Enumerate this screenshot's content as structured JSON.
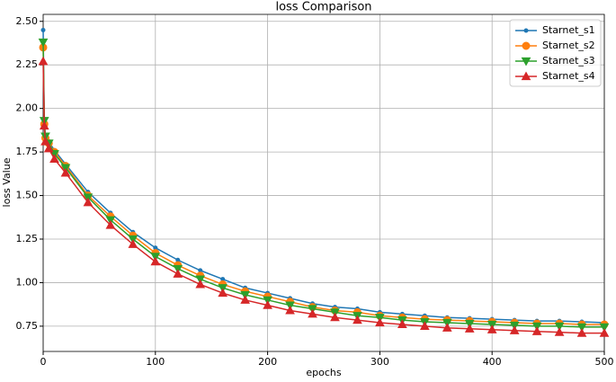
{
  "chart_data": {
    "type": "line",
    "title": "loss Comparison",
    "x_label": "epochs",
    "y_label": "loss Value",
    "x": [
      0,
      1,
      2,
      5,
      10,
      20,
      40,
      60,
      80,
      100,
      120,
      140,
      160,
      180,
      200,
      220,
      240,
      260,
      280,
      300,
      320,
      340,
      360,
      380,
      400,
      420,
      440,
      460,
      480,
      500
    ],
    "series": [
      {
        "name": "Starnet_s1",
        "color": "#1f77b4",
        "marker": "dot",
        "values": [
          2.45,
          1.92,
          1.84,
          1.81,
          1.76,
          1.68,
          1.52,
          1.4,
          1.29,
          1.2,
          1.13,
          1.07,
          1.02,
          0.97,
          0.94,
          0.91,
          0.88,
          0.86,
          0.85,
          0.83,
          0.82,
          0.81,
          0.8,
          0.795,
          0.79,
          0.785,
          0.78,
          0.78,
          0.775,
          0.77
        ]
      },
      {
        "name": "Starnet_s2",
        "color": "#ff7f0e",
        "marker": "circle",
        "values": [
          2.35,
          1.91,
          1.83,
          1.8,
          1.75,
          1.67,
          1.5,
          1.38,
          1.27,
          1.17,
          1.1,
          1.04,
          0.99,
          0.95,
          0.92,
          0.89,
          0.86,
          0.84,
          0.83,
          0.81,
          0.8,
          0.79,
          0.785,
          0.78,
          0.775,
          0.77,
          0.765,
          0.765,
          0.76,
          0.76
        ]
      },
      {
        "name": "Starnet_s3",
        "color": "#2ca02c",
        "marker": "triangle-down",
        "values": [
          2.38,
          1.93,
          1.84,
          1.8,
          1.74,
          1.66,
          1.49,
          1.36,
          1.25,
          1.15,
          1.08,
          1.02,
          0.97,
          0.93,
          0.9,
          0.87,
          0.85,
          0.83,
          0.81,
          0.8,
          0.785,
          0.775,
          0.77,
          0.765,
          0.76,
          0.755,
          0.75,
          0.75,
          0.745,
          0.745
        ]
      },
      {
        "name": "Starnet_s4",
        "color": "#d62728",
        "marker": "triangle-up",
        "values": [
          2.27,
          1.9,
          1.81,
          1.77,
          1.71,
          1.63,
          1.46,
          1.33,
          1.22,
          1.12,
          1.05,
          0.99,
          0.94,
          0.9,
          0.87,
          0.84,
          0.82,
          0.8,
          0.785,
          0.77,
          0.76,
          0.75,
          0.74,
          0.735,
          0.73,
          0.725,
          0.72,
          0.715,
          0.71,
          0.71
        ]
      }
    ],
    "xlim": [
      0,
      500
    ],
    "xticks": [
      0,
      100,
      200,
      300,
      400,
      500
    ],
    "ylim": [
      0.605,
      2.54
    ],
    "yticks": [
      0.75,
      {
        "value": 1.0,
        "label": "1.00"
      },
      1.25,
      {
        "value": 1.5,
        "label": "1.50"
      },
      1.75,
      {
        "value": 2.0,
        "label": "2.00"
      },
      2.25,
      {
        "value": 2.5,
        "label": "2.50"
      }
    ],
    "grid": true,
    "legend": "upper right"
  }
}
